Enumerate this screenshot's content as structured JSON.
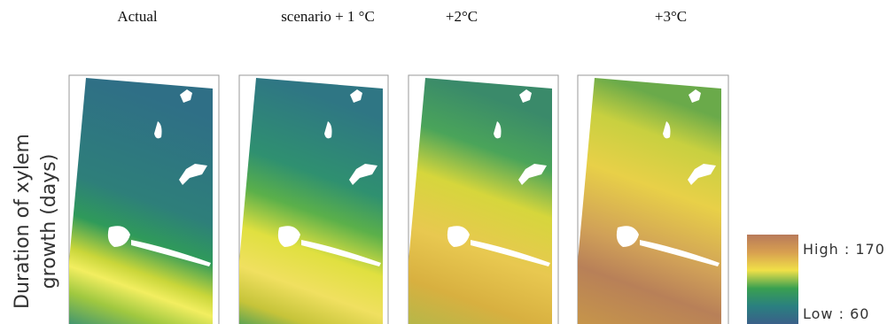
{
  "panels": [
    {
      "title": "Actual"
    },
    {
      "title": "scenario + 1 °C"
    },
    {
      "title": "+2°C"
    },
    {
      "title": "+3°C"
    }
  ],
  "y_axis_label": [
    "Duration of xylem",
    "growth (days)"
  ],
  "legend": {
    "high": "High : 170",
    "low": "Low : 60"
  }
}
